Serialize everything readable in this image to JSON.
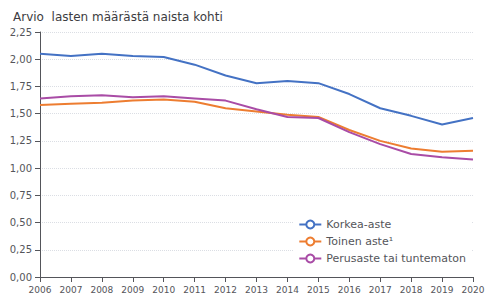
{
  "chart_data": {
    "type": "line",
    "title": "Arvio  lasten määrästä naista kohti",
    "x": [
      2006,
      2007,
      2008,
      2009,
      2010,
      2011,
      2012,
      2013,
      2014,
      2015,
      2016,
      2017,
      2018,
      2019,
      2020
    ],
    "series": [
      {
        "name": "Korkea-aste",
        "color": "#4472C4",
        "values": [
          2.05,
          2.03,
          2.05,
          2.03,
          2.02,
          1.95,
          1.85,
          1.78,
          1.8,
          1.78,
          1.68,
          1.55,
          1.48,
          1.4,
          1.46
        ]
      },
      {
        "name": "Toinen aste¹",
        "color": "#ED7D31",
        "values": [
          1.58,
          1.59,
          1.6,
          1.62,
          1.63,
          1.61,
          1.55,
          1.52,
          1.49,
          1.47,
          1.35,
          1.25,
          1.18,
          1.15,
          1.16
        ]
      },
      {
        "name": "Perusaste tai tuntematon",
        "color": "#A94CA6",
        "values": [
          1.64,
          1.66,
          1.67,
          1.65,
          1.66,
          1.64,
          1.62,
          1.54,
          1.47,
          1.46,
          1.33,
          1.22,
          1.13,
          1.1,
          1.08
        ]
      }
    ],
    "xlim": [
      2006,
      2020
    ],
    "xticks": [
      2006,
      2007,
      2008,
      2009,
      2010,
      2011,
      2012,
      2013,
      2014,
      2015,
      2016,
      2017,
      2018,
      2019,
      2020
    ],
    "ylim": [
      0.0,
      2.25
    ],
    "yticks": [
      {
        "value": 0.0,
        "label": "0,00"
      },
      {
        "value": 0.25,
        "label": "0,25"
      },
      {
        "value": 0.5,
        "label": "0,50"
      },
      {
        "value": 0.75,
        "label": "0,75"
      },
      {
        "value": 1.0,
        "label": "1,00"
      },
      {
        "value": 1.25,
        "label": "1,25"
      },
      {
        "value": 1.5,
        "label": "1,50"
      },
      {
        "value": 1.75,
        "label": "1,75"
      },
      {
        "value": 2.0,
        "label": "2,00"
      },
      {
        "value": 2.25,
        "label": "2,25"
      }
    ],
    "grid": true,
    "legend": "lower right"
  }
}
